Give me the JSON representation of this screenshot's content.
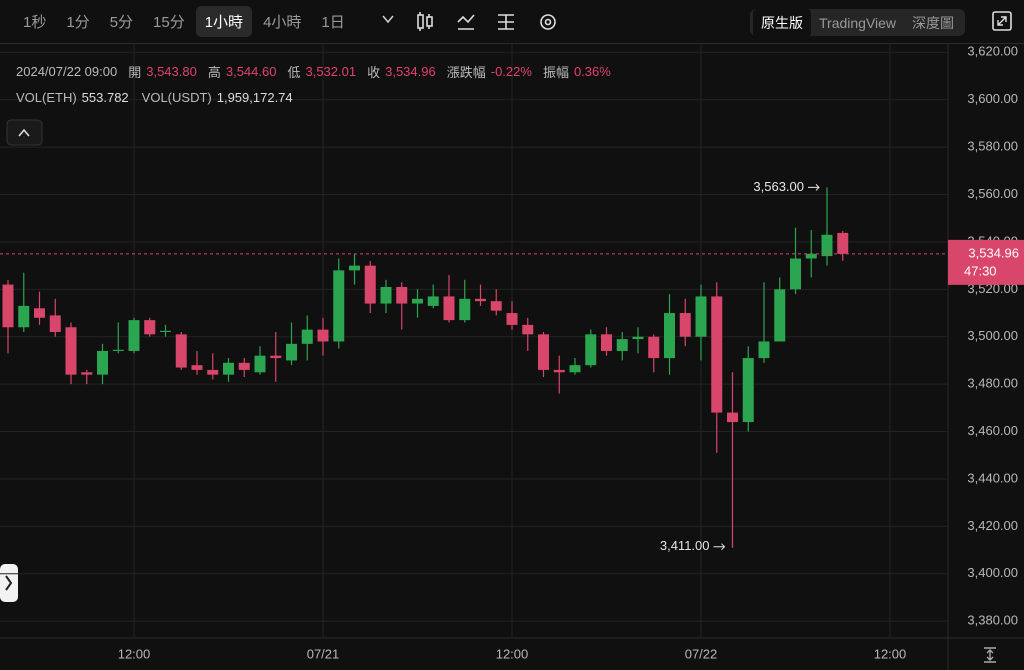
{
  "toolbar": {
    "intervals": [
      "1秒",
      "1分",
      "5分",
      "15分",
      "1小時",
      "4小時",
      "1日"
    ],
    "views": [
      "原生版",
      "TradingView",
      "深度圖"
    ]
  },
  "info": {
    "datetime": "2024/07/22 09:00",
    "fields": [
      {
        "label": "開",
        "value": "3,543.80"
      },
      {
        "label": "高",
        "value": "3,544.60"
      },
      {
        "label": "低",
        "value": "3,532.01"
      },
      {
        "label": "收",
        "value": "3,534.96"
      },
      {
        "label": "漲跌幅",
        "value": "-0.22%"
      },
      {
        "label": "振幅",
        "value": "0.36%"
      }
    ],
    "volume": [
      {
        "label": "VOL(ETH)",
        "value": "553.782"
      },
      {
        "label": "VOL(USDT)",
        "value": "1,959,172.74"
      }
    ]
  },
  "chart_data": {
    "type": "candlestick",
    "categories": [
      null,
      null,
      null,
      null,
      null,
      null,
      null,
      null,
      "12:00",
      null,
      null,
      null,
      null,
      null,
      null,
      null,
      null,
      null,
      null,
      null,
      "07/21",
      null,
      null,
      null,
      null,
      null,
      null,
      null,
      null,
      null,
      null,
      null,
      "12:00",
      null,
      null,
      null,
      null,
      null,
      null,
      null,
      null,
      null,
      null,
      null,
      "07/22",
      null,
      null,
      null,
      null,
      null,
      null,
      null,
      null,
      null,
      null,
      null,
      "12:00"
    ],
    "open": [
      3522,
      3504,
      3512,
      3509,
      3504,
      3485,
      3484,
      3494,
      3494,
      3507,
      3502,
      3501,
      3488,
      3486,
      3484,
      3489,
      3485,
      3492,
      3490,
      3497,
      3503,
      3498,
      3528,
      3530,
      3514,
      3521,
      3514,
      3513,
      3517,
      3507,
      3516,
      3515,
      3510,
      3505,
      3501,
      3486,
      3485,
      3488,
      3501,
      3494,
      3499,
      3500,
      3491,
      3510,
      3500,
      3517,
      3468,
      3464,
      3491,
      3498,
      3520,
      3533,
      3534,
      3543.8,
      null,
      null,
      null
    ],
    "high": [
      3524,
      3527,
      3519,
      3516,
      3506,
      3486,
      3497,
      3506,
      3508,
      3508,
      3505,
      3502,
      3494,
      3493,
      3491,
      3491,
      3496,
      3502,
      3506,
      3509,
      3508,
      3533,
      3535,
      3532,
      3524,
      3523,
      3520,
      3522,
      3526,
      3524,
      3522,
      3520,
      3515,
      3508,
      3502,
      3492,
      3491,
      3503,
      3504,
      3502,
      3504,
      3501,
      3518,
      3516,
      3522,
      3523,
      3485,
      3496,
      3523,
      3525,
      3546,
      3545,
      3563,
      3544.6,
      null,
      null,
      null
    ],
    "low": [
      3493,
      3502,
      3505,
      3500,
      3480,
      3480,
      3480,
      3493,
      3493,
      3500,
      3500,
      3486,
      3484,
      3482,
      3481,
      3483,
      3484,
      3481,
      3488,
      3490,
      3492,
      3495,
      3522,
      3510,
      3510,
      3503,
      3508,
      3512,
      3506,
      3506,
      3513,
      3509,
      3503,
      3494,
      3483,
      3476,
      3484,
      3487,
      3492,
      3490,
      3493,
      3485,
      3484,
      3496,
      3490,
      3451,
      3411,
      3460,
      3489,
      3498,
      3518,
      3525,
      3530,
      3532.01,
      null,
      null,
      null
    ],
    "close": [
      3504,
      3513,
      3508,
      3502,
      3484,
      3484,
      3494,
      3494.5,
      3507,
      3501,
      3502.5,
      3487,
      3486,
      3484,
      3489,
      3486,
      3492,
      3491,
      3497,
      3503,
      3498,
      3528,
      3530,
      3514,
      3521,
      3514,
      3516,
      3517,
      3507,
      3516,
      3515,
      3511,
      3505,
      3501,
      3486,
      3485,
      3488,
      3501,
      3494,
      3499,
      3500,
      3491,
      3510,
      3500,
      3517,
      3468,
      3464,
      3491,
      3498,
      3520,
      3533,
      3535,
      3543,
      3534.96,
      null,
      null,
      null
    ],
    "up_color": "#2ba54f",
    "down_color": "#d9466c",
    "ylim": [
      3372.9,
      3623.5
    ],
    "yticks": [
      {
        "value": 3380,
        "label": "3,380.00"
      },
      {
        "value": 3400,
        "label": "3,400.00"
      },
      {
        "value": 3420,
        "label": "3,420.00"
      },
      {
        "value": 3440,
        "label": "3,440.00"
      },
      {
        "value": 3460,
        "label": "3,460.00"
      },
      {
        "value": 3480,
        "label": "3,480.00"
      },
      {
        "value": 3500,
        "label": "3,500.00"
      },
      {
        "value": 3520,
        "label": "3,520.00"
      },
      {
        "value": 3540,
        "label": "3,540.00"
      },
      {
        "value": 3560,
        "label": "3,560.00"
      },
      {
        "value": 3580,
        "label": "3,580.00"
      },
      {
        "value": 3600,
        "label": "3,600.00"
      },
      {
        "value": 3620,
        "label": "3,620.00"
      }
    ],
    "grid": true,
    "annotations": [
      {
        "label": "3,563.00",
        "value": 3563
      },
      {
        "label": "3,411.00",
        "value": 3411
      }
    ],
    "last_price": {
      "value": 3534.96,
      "label": "3,534.96"
    },
    "countdown": "47:30"
  }
}
